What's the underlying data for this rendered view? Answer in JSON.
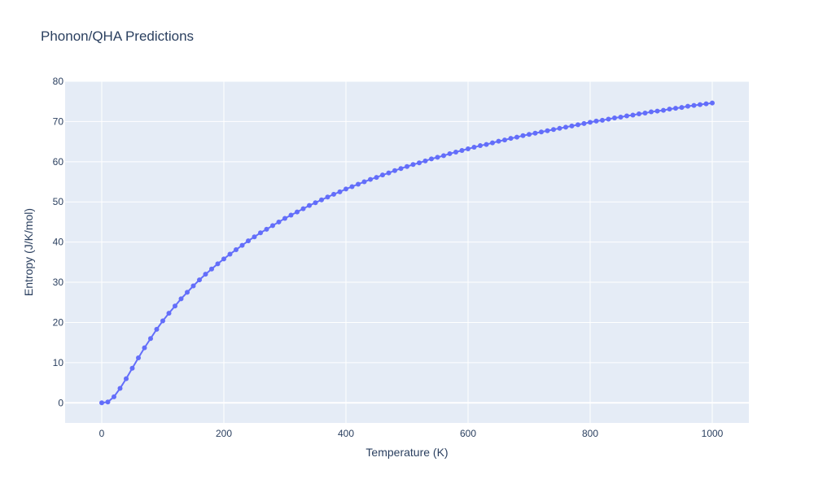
{
  "chart_data": {
    "type": "line",
    "title": "Phonon/QHA Predictions",
    "xlabel": "Temperature (K)",
    "ylabel": "Entropy (J/K/mol)",
    "xlim": [
      -60,
      1060
    ],
    "ylim": [
      -5,
      80
    ],
    "xticks": [
      0,
      200,
      400,
      600,
      800,
      1000
    ],
    "yticks": [
      0,
      10,
      20,
      30,
      40,
      50,
      60,
      70,
      80
    ],
    "grid": true,
    "legend": "none",
    "colors": {
      "series": "#636efa",
      "plot_bg": "#e5ecf6",
      "grid": "#ffffff",
      "text": "#2a3f5f"
    },
    "series": [
      {
        "markers": true,
        "x": [
          0,
          10,
          20,
          30,
          40,
          50,
          60,
          70,
          80,
          90,
          100,
          110,
          120,
          130,
          140,
          150,
          160,
          170,
          180,
          190,
          200,
          210,
          220,
          230,
          240,
          250,
          260,
          270,
          280,
          290,
          300,
          310,
          320,
          330,
          340,
          350,
          360,
          370,
          380,
          390,
          400,
          410,
          420,
          430,
          440,
          450,
          460,
          470,
          480,
          490,
          500,
          510,
          520,
          530,
          540,
          550,
          560,
          570,
          580,
          590,
          600,
          610,
          620,
          630,
          640,
          650,
          660,
          670,
          680,
          690,
          700,
          710,
          720,
          730,
          740,
          750,
          760,
          770,
          780,
          790,
          800,
          810,
          820,
          830,
          840,
          850,
          860,
          870,
          880,
          890,
          900,
          910,
          920,
          930,
          940,
          950,
          960,
          970,
          980,
          990,
          1000
        ],
        "y": [
          0.0,
          0.2,
          1.5,
          3.6,
          6.0,
          8.6,
          11.2,
          13.7,
          16.0,
          18.3,
          20.4,
          22.3,
          24.1,
          25.9,
          27.5,
          29.1,
          30.6,
          32.0,
          33.3,
          34.6,
          35.8,
          37.0,
          38.1,
          39.2,
          40.3,
          41.3,
          42.3,
          43.2,
          44.1,
          45.0,
          45.9,
          46.7,
          47.5,
          48.3,
          49.1,
          49.8,
          50.5,
          51.2,
          51.9,
          52.5,
          53.2,
          53.8,
          54.4,
          55.0,
          55.6,
          56.1,
          56.7,
          57.2,
          57.8,
          58.3,
          58.8,
          59.3,
          59.7,
          60.2,
          60.7,
          61.1,
          61.5,
          62.0,
          62.4,
          62.8,
          63.2,
          63.6,
          64.0,
          64.3,
          64.7,
          65.1,
          65.4,
          65.8,
          66.1,
          66.5,
          66.8,
          67.1,
          67.4,
          67.7,
          68.0,
          68.3,
          68.6,
          68.9,
          69.2,
          69.5,
          69.8,
          70.1,
          70.3,
          70.6,
          70.9,
          71.1,
          71.4,
          71.6,
          71.9,
          72.1,
          72.4,
          72.6,
          72.8,
          73.1,
          73.3,
          73.5,
          73.8,
          74.0,
          74.2,
          74.4,
          74.6
        ]
      }
    ]
  }
}
